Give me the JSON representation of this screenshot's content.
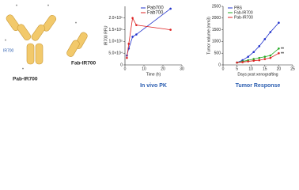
{
  "diagram": {
    "labels": [
      "Pab-IR700",
      "Fab-IR700",
      "IR700"
    ]
  },
  "chart_data": [
    {
      "type": "line",
      "title": "In vivo PK",
      "x_label": "Time (h)",
      "y_label": "IR700 RFU",
      "xlim": [
        0,
        30
      ],
      "xticks": [
        0,
        10,
        20,
        30
      ],
      "ylim": [
        0,
        250000
      ],
      "yticks": [
        0,
        {
          "value": 50000,
          "label": "5.0×10⁴"
        },
        {
          "value": 100000,
          "label": "1.0×10⁵"
        },
        {
          "value": 150000,
          "label": "1.5×10⁵"
        },
        {
          "value": 200000,
          "label": "2.0×10⁵"
        }
      ],
      "series": [
        {
          "name": "Pab700",
          "color": "#2233cc",
          "x": [
            1,
            2,
            4,
            6,
            24
          ],
          "values": [
            40000,
            70000,
            120000,
            130000,
            240000
          ]
        },
        {
          "name": "Fab700",
          "color": "#dd2222",
          "x": [
            1,
            2,
            4,
            6,
            24
          ],
          "values": [
            30000,
            90000,
            200000,
            170000,
            150000
          ]
        }
      ]
    },
    {
      "type": "line",
      "title": "Tumor Response",
      "x_label": "Days post xenografting",
      "y_label": "Tumor volume (mm3)",
      "xlim": [
        0,
        25
      ],
      "xticks": [
        0,
        5,
        10,
        15,
        20,
        25
      ],
      "ylim": [
        0,
        2500
      ],
      "yticks": [
        0,
        500,
        1000,
        1500,
        2000,
        2500
      ],
      "annotations": [
        "**",
        "**"
      ],
      "series": [
        {
          "name": "PBS",
          "color": "#2233cc",
          "x": [
            5,
            7,
            9,
            11,
            13,
            15,
            17,
            20
          ],
          "values": [
            100,
            200,
            350,
            550,
            800,
            1100,
            1400,
            1800
          ]
        },
        {
          "name": "Fab-IR700",
          "color": "#22aa22",
          "x": [
            5,
            7,
            9,
            11,
            13,
            15,
            17,
            20
          ],
          "values": [
            100,
            150,
            200,
            250,
            300,
            350,
            400,
            700
          ]
        },
        {
          "name": "Pab-IR700",
          "color": "#dd2222",
          "x": [
            5,
            7,
            9,
            11,
            13,
            15,
            17,
            20
          ],
          "values": [
            100,
            120,
            150,
            180,
            200,
            250,
            300,
            500
          ]
        }
      ]
    }
  ]
}
